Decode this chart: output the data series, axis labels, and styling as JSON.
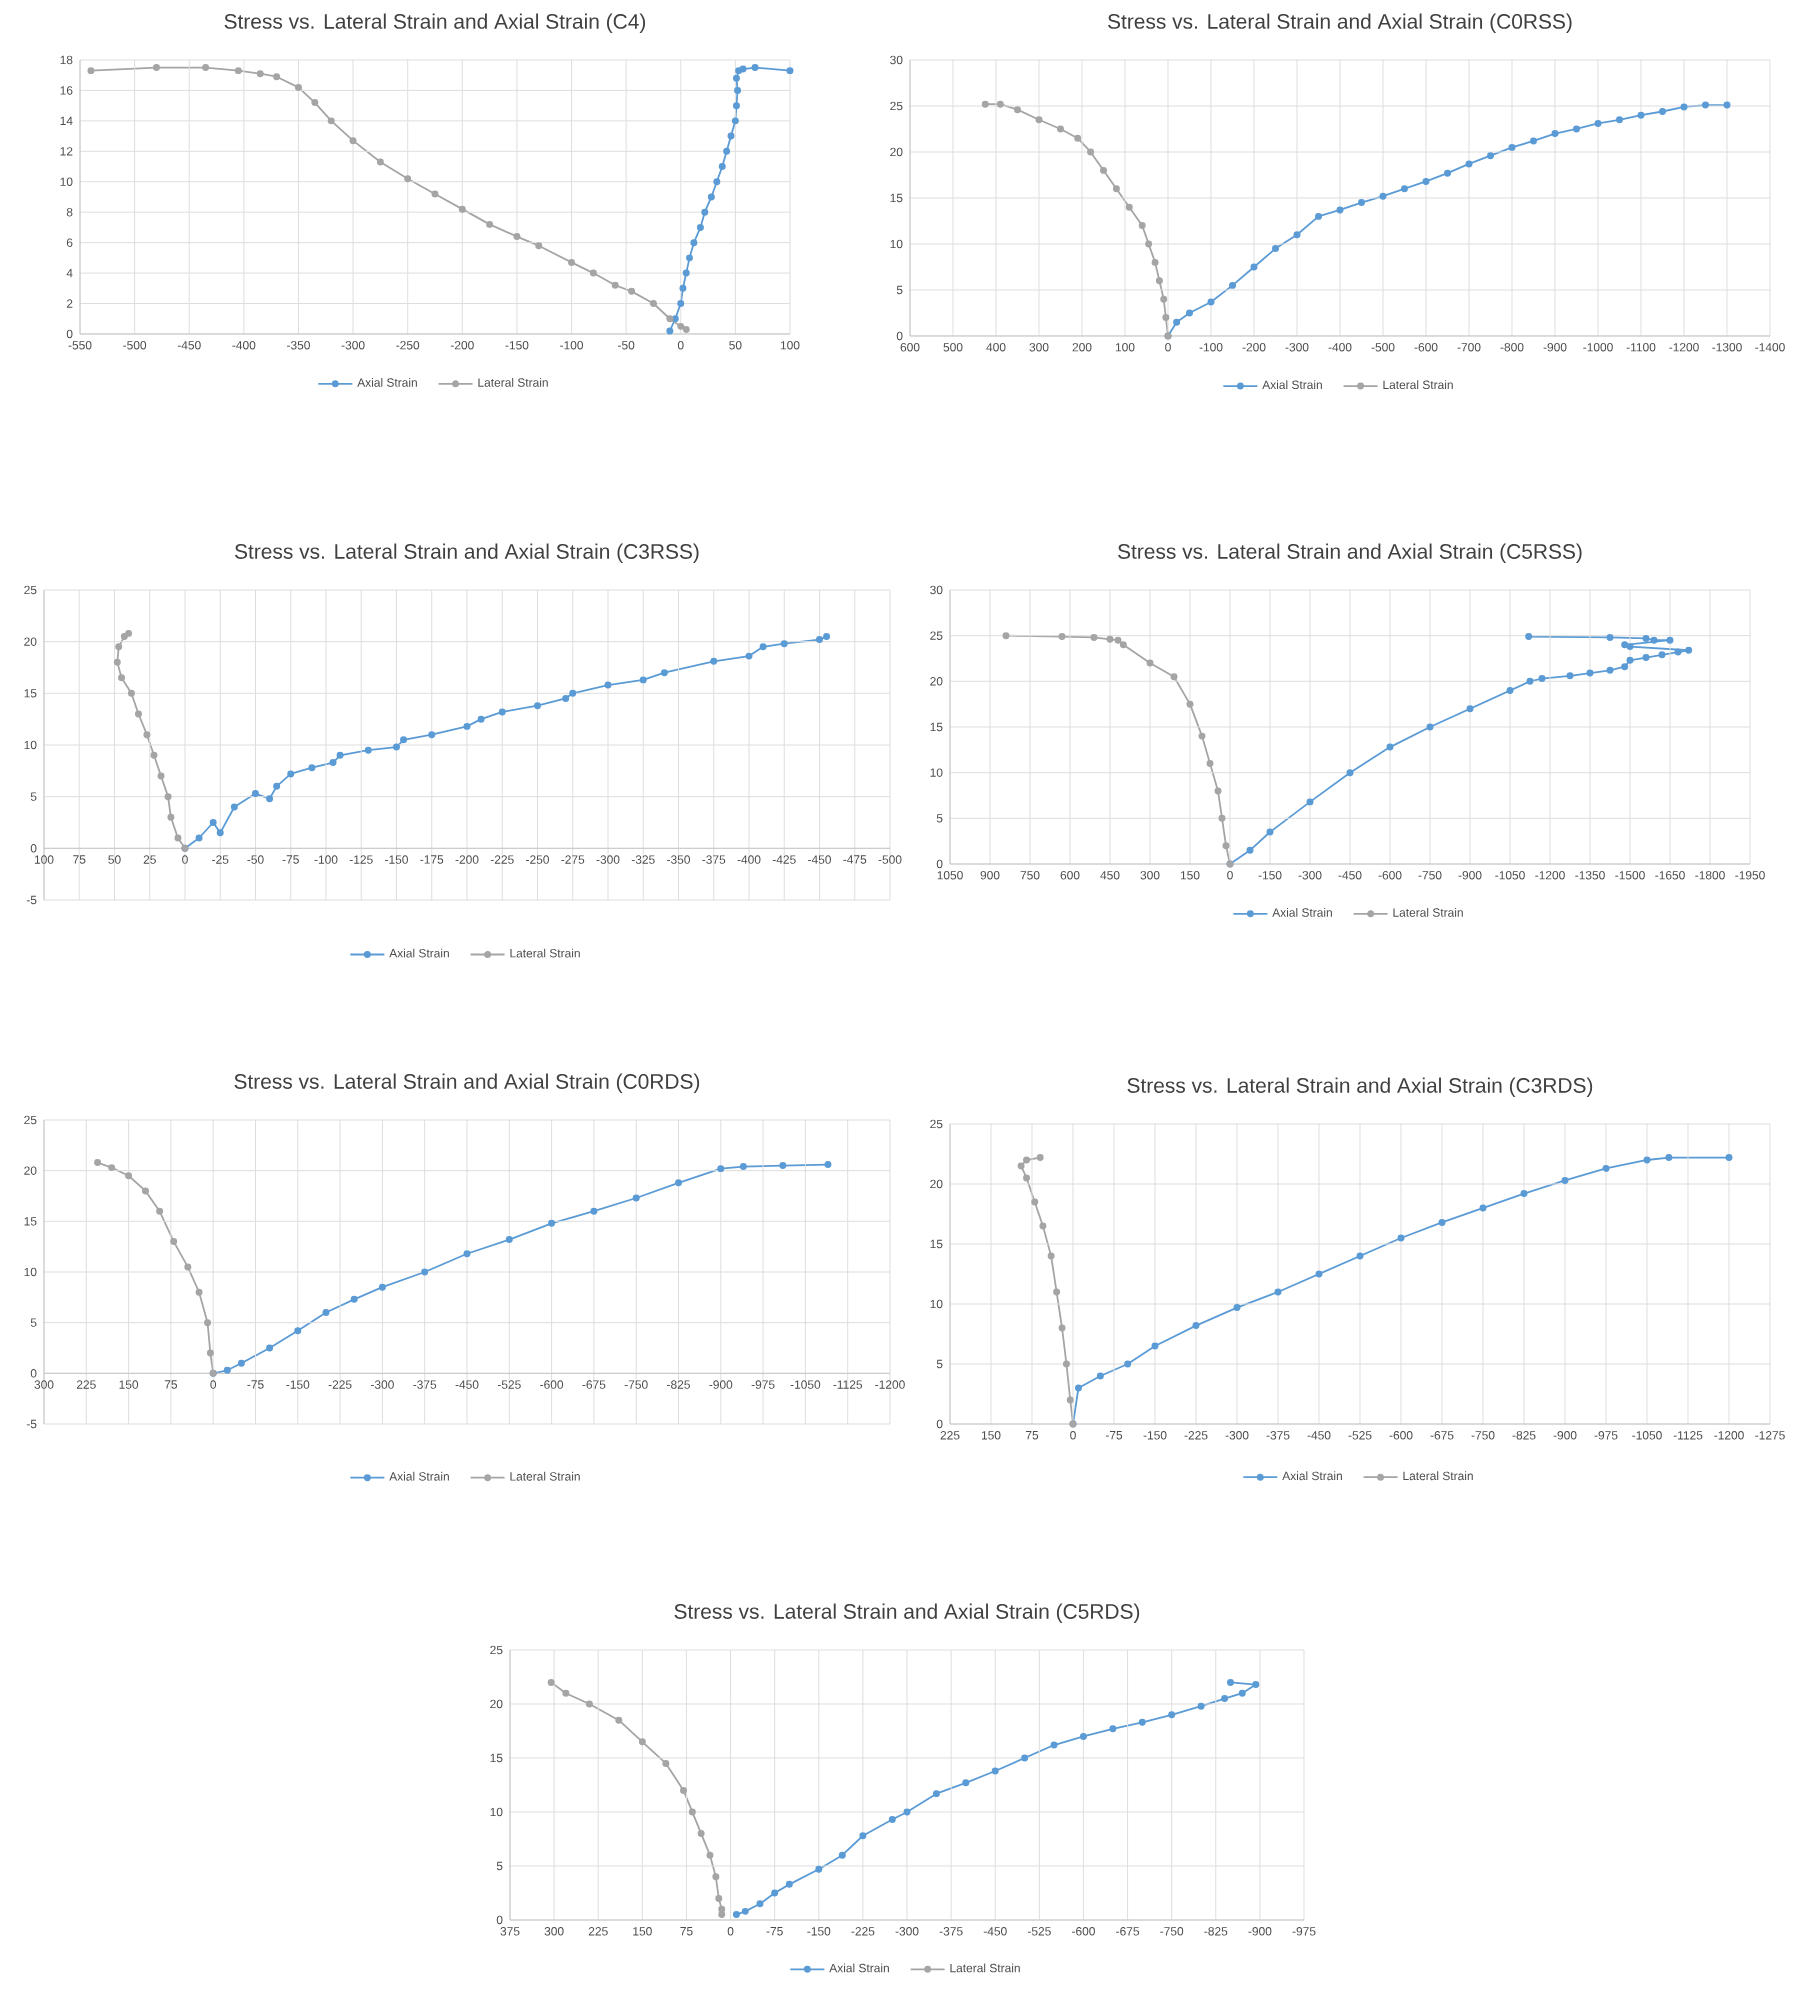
{
  "chart_data": [
    {
      "type": "line",
      "title": "Stress vs. Lateral Strain and Axial Strain (C4)",
      "xlim": [
        -550,
        100
      ],
      "ylim": [
        0,
        18
      ],
      "xticks": [
        -550,
        -500,
        -450,
        -400,
        -350,
        -300,
        -250,
        -200,
        -150,
        -100,
        -50,
        0,
        50,
        100
      ],
      "yticks": [
        0,
        2,
        4,
        6,
        8,
        10,
        12,
        14,
        16,
        18
      ],
      "grid": true,
      "legend": "bottom",
      "marker": "circle",
      "line_style": "solid",
      "series": [
        {
          "name": "Axial Strain",
          "color": "#5b9bd5",
          "x": [
            -10,
            -5,
            0,
            2,
            5,
            8,
            12,
            18,
            22,
            28,
            33,
            38,
            42,
            46,
            50,
            51,
            52,
            51,
            53,
            57,
            68,
            100
          ],
          "values": [
            0.2,
            1,
            2,
            3,
            4,
            5,
            6,
            7,
            8,
            9,
            10,
            11,
            12,
            13,
            14,
            15,
            16,
            16.8,
            17.3,
            17.4,
            17.5,
            17.3
          ]
        },
        {
          "name": "Lateral Strain",
          "color": "#a5a5a5",
          "x": [
            5,
            0,
            -10,
            -25,
            -45,
            -60,
            -80,
            -100,
            -130,
            -150,
            -175,
            -200,
            -225,
            -250,
            -275,
            -300,
            -320,
            -335,
            -350,
            -370,
            -385,
            -405,
            -435,
            -480,
            -540
          ],
          "values": [
            0.3,
            0.5,
            1,
            2,
            2.8,
            3.2,
            4,
            4.7,
            5.8,
            6.4,
            7.2,
            8.2,
            9.2,
            10.2,
            11.3,
            12.7,
            14,
            15.2,
            16.2,
            16.9,
            17.1,
            17.3,
            17.5,
            17.5,
            17.3
          ]
        }
      ]
    },
    {
      "type": "line",
      "title": "Stress vs. Lateral Strain and Axial Strain (C0RSS)",
      "xlim": [
        600,
        -1400
      ],
      "ylim": [
        0,
        30
      ],
      "xticks": [
        600,
        500,
        400,
        300,
        200,
        100,
        0,
        -100,
        -200,
        -300,
        -400,
        -500,
        -600,
        -700,
        -800,
        -900,
        -1000,
        -1100,
        -1200,
        -1300,
        -1400
      ],
      "yticks": [
        0,
        5,
        10,
        15,
        20,
        25,
        30
      ],
      "grid": true,
      "legend": "bottom",
      "marker": "circle",
      "line_style": "solid",
      "series": [
        {
          "name": "Axial Strain",
          "color": "#5b9bd5",
          "x": [
            0,
            -20,
            -50,
            -100,
            -150,
            -200,
            -250,
            -300,
            -350,
            -400,
            -450,
            -500,
            -550,
            -600,
            -650,
            -700,
            -750,
            -800,
            -850,
            -900,
            -950,
            -1000,
            -1050,
            -1100,
            -1150,
            -1200,
            -1250,
            -1300
          ],
          "values": [
            0,
            1.5,
            2.5,
            3.7,
            5.5,
            7.5,
            9.5,
            11,
            13,
            13.7,
            14.5,
            15.2,
            16,
            16.8,
            17.7,
            18.7,
            19.6,
            20.5,
            21.2,
            22,
            22.5,
            23.1,
            23.5,
            24,
            24.4,
            24.9,
            25.1,
            25.1
          ]
        },
        {
          "name": "Lateral Strain",
          "color": "#a5a5a5",
          "x": [
            0,
            5,
            10,
            20,
            30,
            45,
            60,
            90,
            120,
            150,
            180,
            210,
            250,
            300,
            350,
            390,
            425
          ],
          "values": [
            0,
            2,
            4,
            6,
            8,
            10,
            12,
            14,
            16,
            18,
            20,
            21.5,
            22.5,
            23.5,
            24.6,
            25.2,
            25.2
          ]
        }
      ]
    },
    {
      "type": "line",
      "title": "Stress vs. Lateral Strain and Axial Strain (C3RSS)",
      "xlim": [
        100,
        -500
      ],
      "ylim": [
        -5,
        25
      ],
      "xticks": [
        100,
        75,
        50,
        25,
        0,
        -25,
        -50,
        -75,
        -100,
        -125,
        -150,
        -175,
        -200,
        -225,
        -250,
        -275,
        -300,
        -325,
        -350,
        -375,
        -400,
        -425,
        -450,
        -475,
        -500
      ],
      "yticks": [
        -5,
        0,
        5,
        10,
        15,
        20,
        25
      ],
      "grid": true,
      "legend": "bottom",
      "marker": "circle",
      "line_style": "solid",
      "series": [
        {
          "name": "Axial Strain",
          "color": "#5b9bd5",
          "x": [
            0,
            -10,
            -20,
            -25,
            -35,
            -50,
            -60,
            -65,
            -75,
            -90,
            -105,
            -110,
            -130,
            -150,
            -155,
            -175,
            -200,
            -210,
            -225,
            -250,
            -270,
            -275,
            -300,
            -325,
            -340,
            -375,
            -400,
            -410,
            -425,
            -450,
            -455
          ],
          "values": [
            0,
            1,
            2.5,
            1.5,
            4,
            5.3,
            4.8,
            6,
            7.2,
            7.8,
            8.3,
            9,
            9.5,
            9.8,
            10.5,
            11,
            11.8,
            12.5,
            13.2,
            13.8,
            14.5,
            15,
            15.8,
            16.3,
            17,
            18.1,
            18.6,
            19.5,
            19.8,
            20.2,
            20.5
          ]
        },
        {
          "name": "Lateral Strain",
          "color": "#a5a5a5",
          "x": [
            0,
            5,
            10,
            12,
            17,
            22,
            27,
            33,
            38,
            45,
            48,
            47,
            43,
            40
          ],
          "values": [
            0,
            1,
            3,
            5,
            7,
            9,
            11,
            13,
            15,
            16.5,
            18,
            19.5,
            20.5,
            20.8
          ]
        }
      ]
    },
    {
      "type": "line",
      "title": "Stress vs. Lateral Strain and Axial Strain (C5RSS)",
      "xlim": [
        1050,
        -1950
      ],
      "ylim": [
        0,
        30
      ],
      "xticks": [
        1050,
        900,
        750,
        600,
        450,
        300,
        150,
        0,
        -150,
        -300,
        -450,
        -600,
        -750,
        -900,
        -1050,
        -1200,
        -1350,
        -1500,
        -1650,
        -1800,
        -1950
      ],
      "yticks": [
        0,
        5,
        10,
        15,
        20,
        25,
        30
      ],
      "grid": true,
      "legend": "bottom",
      "marker": "circle",
      "line_style": "solid",
      "series": [
        {
          "name": "Axial Strain",
          "color": "#5b9bd5",
          "x": [
            0,
            -75,
            -150,
            -300,
            -450,
            -600,
            -750,
            -900,
            -1050,
            -1125,
            -1170,
            -1275,
            -1350,
            -1425,
            -1480,
            -1500,
            -1560,
            -1620,
            -1680,
            -1720,
            -1500,
            -1480,
            -1650,
            -1590,
            -1560,
            -1425,
            -1120
          ],
          "values": [
            0,
            1.5,
            3.5,
            6.8,
            10,
            12.8,
            15,
            17,
            19,
            20,
            20.3,
            20.6,
            20.9,
            21.2,
            21.6,
            22.3,
            22.6,
            22.9,
            23.2,
            23.4,
            23.8,
            24,
            24.5,
            24.5,
            24.7,
            24.8,
            24.9
          ]
        },
        {
          "name": "Lateral Strain",
          "color": "#a5a5a5",
          "x": [
            0,
            15,
            30,
            45,
            75,
            105,
            150,
            210,
            300,
            400,
            420,
            450,
            510,
            630,
            840
          ],
          "values": [
            0,
            2,
            5,
            8,
            11,
            14,
            17.5,
            20.5,
            22,
            24,
            24.5,
            24.6,
            24.8,
            24.9,
            25
          ]
        }
      ]
    },
    {
      "type": "line",
      "title": "Stress vs. Lateral Strain and Axial Strain (C0RDS)",
      "xlim": [
        300,
        -1200
      ],
      "ylim": [
        -5,
        25
      ],
      "xticks": [
        300,
        225,
        150,
        75,
        0,
        -75,
        -150,
        -225,
        -300,
        -375,
        -450,
        -525,
        -600,
        -675,
        -750,
        -825,
        -900,
        -975,
        -1050,
        -1125,
        -1200
      ],
      "yticks": [
        -5,
        0,
        5,
        10,
        15,
        20,
        25
      ],
      "grid": true,
      "legend": "bottom",
      "marker": "circle",
      "line_style": "solid",
      "series": [
        {
          "name": "Axial Strain",
          "color": "#5b9bd5",
          "x": [
            0,
            -25,
            -50,
            -100,
            -150,
            -200,
            -250,
            -300,
            -375,
            -450,
            -525,
            -600,
            -675,
            -750,
            -825,
            -900,
            -940,
            -1010,
            -1090
          ],
          "values": [
            0,
            0.3,
            1,
            2.5,
            4.2,
            6,
            7.3,
            8.5,
            10,
            11.8,
            13.2,
            14.8,
            16,
            17.3,
            18.8,
            20.2,
            20.4,
            20.5,
            20.6
          ]
        },
        {
          "name": "Lateral Strain",
          "color": "#a5a5a5",
          "x": [
            0,
            5,
            10,
            25,
            45,
            70,
            95,
            120,
            150,
            180,
            205
          ],
          "values": [
            0,
            2,
            5,
            8,
            10.5,
            13,
            16,
            18,
            19.5,
            20.3,
            20.8
          ]
        }
      ]
    },
    {
      "type": "line",
      "title": "Stress vs. Lateral Strain and Axial Strain (C3RDS)",
      "xlim": [
        225,
        -1275
      ],
      "ylim": [
        0,
        25
      ],
      "xticks": [
        225,
        150,
        75,
        0,
        -75,
        -150,
        -225,
        -300,
        -375,
        -450,
        -525,
        -600,
        -675,
        -750,
        -825,
        -900,
        -975,
        -1050,
        -1125,
        -1200,
        -1275
      ],
      "yticks": [
        0,
        5,
        10,
        15,
        20,
        25
      ],
      "grid": true,
      "legend": "bottom",
      "marker": "circle",
      "line_style": "solid",
      "series": [
        {
          "name": "Axial Strain",
          "color": "#5b9bd5",
          "x": [
            0,
            -10,
            -50,
            -100,
            -150,
            -225,
            -300,
            -375,
            -450,
            -525,
            -600,
            -675,
            -750,
            -825,
            -900,
            -975,
            -1050,
            -1090,
            -1200
          ],
          "values": [
            0,
            3,
            4,
            5,
            6.5,
            8.2,
            9.7,
            11,
            12.5,
            14,
            15.5,
            16.8,
            18,
            19.2,
            20.3,
            21.3,
            22,
            22.2,
            22.2
          ]
        },
        {
          "name": "Lateral Strain",
          "color": "#a5a5a5",
          "x": [
            0,
            5,
            12,
            20,
            30,
            40,
            55,
            70,
            85,
            95,
            85,
            60
          ],
          "values": [
            0,
            2,
            5,
            8,
            11,
            14,
            16.5,
            18.5,
            20.5,
            21.5,
            22,
            22.2
          ]
        }
      ]
    },
    {
      "type": "line",
      "title": "Stress vs. Lateral Strain and Axial Strain (C5RDS)",
      "xlim": [
        375,
        -975
      ],
      "ylim": [
        0,
        25
      ],
      "xticks": [
        375,
        300,
        225,
        150,
        75,
        0,
        -75,
        -150,
        -225,
        -300,
        -375,
        -450,
        -525,
        -600,
        -675,
        -750,
        -825,
        -900,
        -975
      ],
      "yticks": [
        0,
        5,
        10,
        15,
        20,
        25
      ],
      "grid": true,
      "legend": "bottom",
      "marker": "circle",
      "line_style": "solid",
      "series": [
        {
          "name": "Axial Strain",
          "color": "#5b9bd5",
          "x": [
            -10,
            -25,
            -50,
            -75,
            -100,
            -150,
            -190,
            -225,
            -275,
            -300,
            -350,
            -400,
            -450,
            -500,
            -550,
            -600,
            -650,
            -700,
            -750,
            -800,
            -840,
            -870,
            -893,
            -850
          ],
          "values": [
            0.5,
            0.8,
            1.5,
            2.5,
            3.3,
            4.7,
            6,
            7.8,
            9.3,
            10,
            11.7,
            12.7,
            13.8,
            15,
            16.2,
            17,
            17.7,
            18.3,
            19,
            19.8,
            20.5,
            21,
            21.8,
            22
          ]
        },
        {
          "name": "Lateral Strain",
          "color": "#a5a5a5",
          "x": [
            15,
            15,
            20,
            25,
            35,
            50,
            65,
            80,
            110,
            150,
            190,
            240,
            280,
            305
          ],
          "values": [
            0.5,
            1,
            2,
            4,
            6,
            8,
            10,
            12,
            14.5,
            16.5,
            18.5,
            20,
            21,
            22
          ]
        }
      ]
    }
  ]
}
